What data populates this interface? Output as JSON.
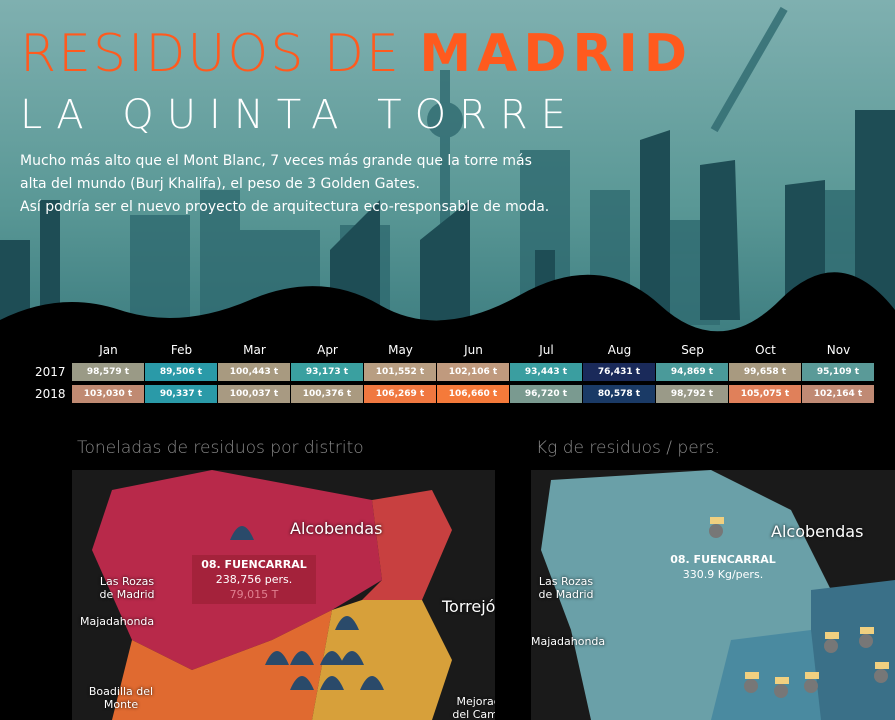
{
  "header": {
    "title_light": "RESIDUOS DE",
    "title_bold": "MADRID",
    "subtitle": "LA QUINTA TORRE",
    "description": [
      "Mucho más alto que el Mont Blanc, 7 veces más grande que la torre más",
      "alta del mundo (Burj Khalifa), el peso de 3 Golden Gates.",
      "Así podría ser el nuevo proyecto de arquitectura eco-responsable de moda."
    ]
  },
  "table": {
    "months": [
      "Jan",
      "Feb",
      "Mar",
      "Apr",
      "May",
      "Jun",
      "Jul",
      "Aug",
      "Sep",
      "Oct",
      "Nov"
    ],
    "rows": [
      {
        "year": "2017",
        "cells": [
          {
            "label": "98,579 t",
            "color": "#9a9a86"
          },
          {
            "label": "89,506 t",
            "color": "#2a9aa8"
          },
          {
            "label": "100,443 t",
            "color": "#a89a80"
          },
          {
            "label": "93,173 t",
            "color": "#3aa0a0"
          },
          {
            "label": "101,552 t",
            "color": "#b89e82"
          },
          {
            "label": "102,106 t",
            "color": "#c09a7e"
          },
          {
            "label": "93,443 t",
            "color": "#3a9ea0"
          },
          {
            "label": "76,431 t",
            "color": "#1a2a5a"
          },
          {
            "label": "94,869 t",
            "color": "#4a9a9a"
          },
          {
            "label": "99,658 t",
            "color": "#a89a80"
          },
          {
            "label": "95,109 t",
            "color": "#5a9a98"
          }
        ]
      },
      {
        "year": "2018",
        "cells": [
          {
            "label": "103,030 t",
            "color": "#c08a72"
          },
          {
            "label": "90,337 t",
            "color": "#2a9aa8"
          },
          {
            "label": "100,037 t",
            "color": "#a89a82"
          },
          {
            "label": "100,376 t",
            "color": "#aa9a80"
          },
          {
            "label": "106,269 t",
            "color": "#f07840"
          },
          {
            "label": "106,660 t",
            "color": "#f57a3a"
          },
          {
            "label": "96,720 t",
            "color": "#7a9a90"
          },
          {
            "label": "80,578 t",
            "color": "#1a3a66"
          },
          {
            "label": "98,792 t",
            "color": "#9a9a88"
          },
          {
            "label": "105,075 t",
            "color": "#e0805a"
          },
          {
            "label": "102,164 t",
            "color": "#c08a74"
          }
        ]
      }
    ]
  },
  "maps": [
    {
      "title": "Toneladas de residuos por distrito",
      "places": [
        "Alcobendas",
        "Las Rozas de Madrid",
        "Majadahonda",
        "Torrejón de Ardoz",
        "Boadilla del Monte",
        "Mejorada del Campo"
      ],
      "tooltip": {
        "district": "08. FUENCARRAL",
        "line1": "238,756 pers.",
        "line2": "79,015 T"
      }
    },
    {
      "title": "Kg de residuos / pers.",
      "places": [
        "Alcobendas",
        "Las Rozas de Madrid",
        "Majadahonda"
      ],
      "tooltip": {
        "district": "08. FUENCARRAL",
        "line1": "330.9 Kg/pers."
      }
    }
  ]
}
